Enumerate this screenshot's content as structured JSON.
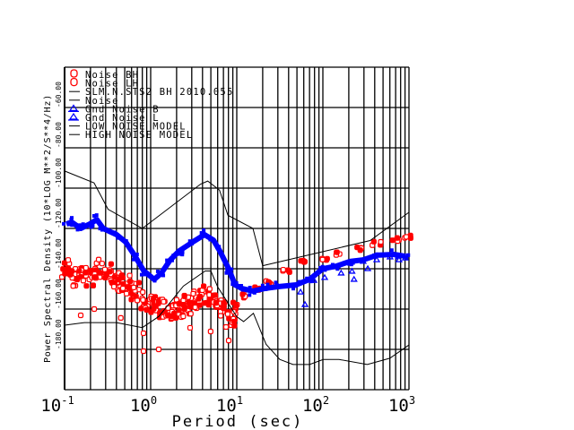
{
  "chart_data": {
    "type": "scatter",
    "title": "",
    "xlabel": "Period (sec)",
    "ylabel": "Power Spectral Density (10*LOG M**2/S**4/Hz)",
    "xscale": "log",
    "xlim": [
      0.1,
      1000
    ],
    "ylim": [
      -200,
      -40
    ],
    "grid": true,
    "legend_placement": "top-left",
    "x_ticks": [
      {
        "base": "10",
        "exp": "-1",
        "value": 0.1
      },
      {
        "base": "10",
        "exp": "0",
        "value": 1
      },
      {
        "base": "10",
        "exp": "1",
        "value": 10
      },
      {
        "base": "10",
        "exp": "2",
        "value": 100
      },
      {
        "base": "10",
        "exp": "3",
        "value": 1000
      }
    ],
    "y_ticks": [
      {
        "label": "-60.00",
        "value": -60
      },
      {
        "label": "-80.00",
        "value": -80
      },
      {
        "label": "-100.00",
        "value": -100
      },
      {
        "label": "-120.00",
        "value": -120
      },
      {
        "label": "-140.00",
        "value": -140
      },
      {
        "label": "-160.00",
        "value": -160
      },
      {
        "label": "-180.00",
        "value": -180
      }
    ],
    "legend": [
      {
        "label": "Noise BH",
        "symbol": "circle",
        "color": "#ff0000"
      },
      {
        "label": "Noise LH",
        "symbol": "circle",
        "color": "#ff0000"
      },
      {
        "label": "SLM.N.STS2 BH  2010.055",
        "symbol": "line",
        "color": "#000000"
      },
      {
        "label": "Noise",
        "symbol": "line",
        "color": "#000000"
      },
      {
        "label": "Gnd Noise B",
        "symbol": "triangle",
        "color": "#0000ff"
      },
      {
        "label": "Gnd Noise L",
        "symbol": "triangle",
        "color": "#0000ff"
      },
      {
        "label": "LOW NOISE MODEL",
        "symbol": "line",
        "color": "#000000"
      },
      {
        "label": "HIGH NOISE MODEL",
        "symbol": "line",
        "color": "#000000"
      }
    ],
    "series": [
      {
        "name": "HIGH NOISE MODEL",
        "kind": "line",
        "color": "#000000",
        "x": [
          0.1,
          0.22,
          0.32,
          0.8,
          3.8,
          4.6,
          6.3,
          7.9,
          15.4,
          20,
          354,
          1000
        ],
        "y": [
          -91.5,
          -97.4,
          -110.5,
          -120,
          -98,
          -96.5,
          -101,
          -113.5,
          -120,
          -138.5,
          -126,
          -112
        ]
      },
      {
        "name": "LOW NOISE MODEL",
        "kind": "line",
        "color": "#000000",
        "x": [
          0.1,
          0.17,
          0.4,
          0.8,
          1.24,
          2.4,
          4.3,
          5,
          6,
          10,
          12,
          15.6,
          21.9,
          31.6,
          45,
          70,
          101,
          154,
          328,
          600,
          1000
        ],
        "y": [
          -168,
          -166.7,
          -166.7,
          -169.2,
          -163.7,
          -148.6,
          -141.1,
          -141.1,
          -149,
          -163.8,
          -166.2,
          -162.1,
          -177.5,
          -185,
          -187.5,
          -187.5,
          -185,
          -185,
          -187.5,
          -184.4,
          -177.8
        ]
      },
      {
        "name": "Gnd Noise B",
        "kind": "dense",
        "color": "#0000ff",
        "x": [
          0.105,
          0.121,
          0.154,
          0.196,
          0.237,
          0.281,
          0.402,
          0.511,
          0.649,
          0.826,
          1.1,
          1.33,
          1.69,
          2.15,
          3.09,
          4.22,
          5.36,
          6.34,
          8.06,
          9.53,
          11.5,
          15.4,
          21.0,
          30.1,
          48.7,
          69.8,
          100,
          143,
          205,
          294,
          422,
          681,
          908
        ],
        "y": [
          -117.8,
          -116.9,
          -120,
          -117.8,
          -115.6,
          -120,
          -123.1,
          -126.7,
          -133.3,
          -140.9,
          -145.3,
          -142.2,
          -135.6,
          -131.1,
          -126.7,
          -123.1,
          -125.8,
          -131.1,
          -140,
          -148,
          -149.8,
          -151.1,
          -149.8,
          -148.9,
          -148,
          -145.3,
          -140,
          -138.7,
          -136.4,
          -135.6,
          -133.3,
          -132.9,
          -133.8
        ]
      },
      {
        "name": "Gnd Noise L",
        "kind": "triangle",
        "color": "#0000ff",
        "x": [
          55,
          62,
          78.7,
          105,
          163,
          218,
          230,
          294,
          332,
          422,
          603,
          767,
          908
        ],
        "y": [
          -151.6,
          -157.8,
          -145.8,
          -144.4,
          -142.2,
          -141.3,
          -145.3,
          -136.4,
          -140,
          -135.6,
          -134.2,
          -135.6,
          -134.7
        ]
      },
      {
        "name": "Noise BH",
        "kind": "circle",
        "color": "#ff0000",
        "x": [
          0.105,
          0.121,
          0.154,
          0.196,
          0.249,
          0.316,
          0.402,
          0.511,
          0.649,
          0.826,
          1.05,
          1.33,
          1.69,
          2.15,
          2.74,
          3.49,
          4.44,
          5.63,
          7.15,
          8.63,
          9.53,
          11.5,
          16.5,
          23.6,
          38.3,
          61.6,
          100,
          160,
          264,
          422,
          681,
          980
        ],
        "y": [
          -140,
          -144.4,
          -142.2,
          -144.4,
          -140,
          -142.2,
          -146.7,
          -148,
          -151.1,
          -155.6,
          -157.8,
          -160,
          -162.2,
          -160,
          -157.8,
          -155.6,
          -153.3,
          -155.6,
          -160,
          -164.4,
          -157.8,
          -153.3,
          -150.2,
          -146.7,
          -140.9,
          -136.4,
          -134.7,
          -132.4,
          -130.2,
          -127.6,
          -125.8,
          -124.4
        ]
      },
      {
        "name": "Noise LH",
        "kind": "circle",
        "color": "#ff0000",
        "x": [
          0.154,
          0.221,
          0.45,
          0.826,
          1.24,
          0.826,
          4.97,
          8.06,
          7.5,
          2.87
        ],
        "y": [
          -163.1,
          -160,
          -164.4,
          -172,
          -180,
          -180.9,
          -171.1,
          -175.6,
          -168.9,
          -169.3
        ]
      }
    ]
  }
}
